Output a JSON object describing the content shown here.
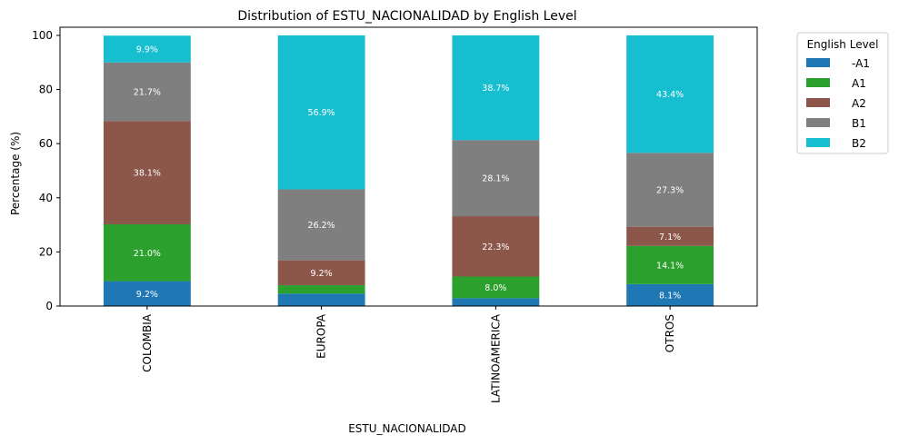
{
  "chart_data": {
    "type": "bar",
    "stacked": true,
    "title": "Distribution of ESTU_NACIONALIDAD by English Level",
    "xlabel": "ESTU_NACIONALIDAD",
    "ylabel": "Percentage (%)",
    "ylim": [
      0,
      103
    ],
    "yticks": [
      "0",
      "20",
      "40",
      "60",
      "80",
      "100"
    ],
    "categories": [
      "COLOMBIA",
      "EUROPA",
      "LATINOAMERICA",
      "OTROS"
    ],
    "legend_title": "English Level",
    "legend_position": "outside-top-right",
    "series": [
      {
        "name": "-A1",
        "color": "#1f77b4",
        "values": [
          9.2,
          4.6,
          2.9,
          8.1
        ],
        "labels": [
          "9.2%",
          "",
          "",
          "8.1%"
        ]
      },
      {
        "name": "A1",
        "color": "#2ca02c",
        "values": [
          21.0,
          3.1,
          8.0,
          14.1
        ],
        "labels": [
          "21.0%",
          "",
          "8.0%",
          "14.1%"
        ]
      },
      {
        "name": "A2",
        "color": "#8c564b",
        "values": [
          38.1,
          9.2,
          22.3,
          7.1
        ],
        "labels": [
          "38.1%",
          "9.2%",
          "22.3%",
          "7.1%"
        ]
      },
      {
        "name": "B1",
        "color": "#7f7f7f",
        "values": [
          21.7,
          26.2,
          28.1,
          27.3
        ],
        "labels": [
          "21.7%",
          "26.2%",
          "28.1%",
          "27.3%"
        ]
      },
      {
        "name": "B2",
        "color": "#17becf",
        "values": [
          9.9,
          56.9,
          38.7,
          43.4
        ],
        "labels": [
          "9.9%",
          "56.9%",
          "38.7%",
          "43.4%"
        ]
      }
    ]
  }
}
